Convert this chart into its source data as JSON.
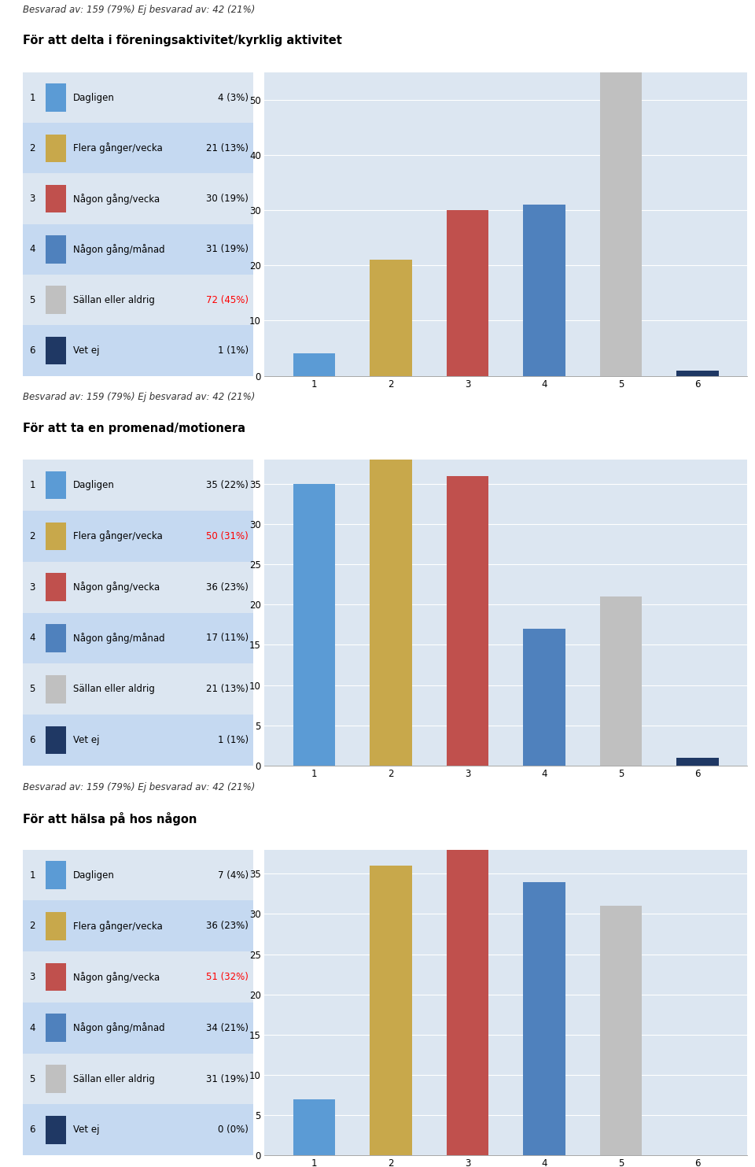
{
  "besvarad_text": "Besvarad av: 159 (79%) Ej besvarad av: 42 (21%)",
  "charts": [
    {
      "title": "För att delta i föreningsaktivitet/kyrklig aktivitet",
      "values": [
        4,
        21,
        30,
        31,
        72,
        1
      ],
      "labels": [
        "Dagligen",
        "Flera gånger/vecka",
        "Någon gång/vecka",
        "Någon gång/månad",
        "Sällan eller aldrig",
        "Vet ej"
      ],
      "counts_pct": [
        "4 (3%)",
        "21 (13%)",
        "30 (19%)",
        "31 (19%)",
        "72 (45%)",
        "1 (1%)"
      ],
      "highlight_idx": 4,
      "ylim": [
        0,
        55
      ],
      "yticks": [
        0,
        10,
        20,
        30,
        40,
        50
      ]
    },
    {
      "title": "För att ta en promenad/motionera",
      "values": [
        35,
        50,
        36,
        17,
        21,
        1
      ],
      "labels": [
        "Dagligen",
        "Flera gånger/vecka",
        "Någon gång/vecka",
        "Någon gång/månad",
        "Sällan eller aldrig",
        "Vet ej"
      ],
      "counts_pct": [
        "35 (22%)",
        "50 (31%)",
        "36 (23%)",
        "17 (11%)",
        "21 (13%)",
        "1 (1%)"
      ],
      "highlight_idx": 1,
      "ylim": [
        0,
        38
      ],
      "yticks": [
        0,
        5,
        10,
        15,
        20,
        25,
        30,
        35
      ]
    },
    {
      "title": "För att hälsa på hos någon",
      "values": [
        7,
        36,
        51,
        34,
        31,
        0
      ],
      "labels": [
        "Dagligen",
        "Flera gånger/vecka",
        "Någon gång/vecka",
        "Någon gång/månad",
        "Sällan eller aldrig",
        "Vet ej"
      ],
      "counts_pct": [
        "7 (4%)",
        "36 (23%)",
        "51 (32%)",
        "34 (21%)",
        "31 (19%)",
        "0 (0%)"
      ],
      "highlight_idx": 2,
      "ylim": [
        0,
        38
      ],
      "yticks": [
        0,
        5,
        10,
        15,
        20,
        25,
        30,
        35
      ]
    }
  ],
  "bar_colors": [
    "#5b9bd5",
    "#c8a84b",
    "#c0504d",
    "#4f81bd",
    "#c0c0c0",
    "#1f3864"
  ],
  "highlight_color": "#ff0000",
  "normal_color": "#000000",
  "legend_row_colors": [
    "#dce6f1",
    "#c5d9f1"
  ],
  "chart_bg": "#dce6f1",
  "fig_bg": "#ffffff"
}
